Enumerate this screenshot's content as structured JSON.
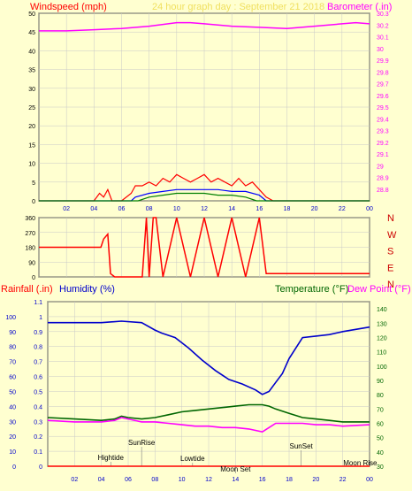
{
  "colors": {
    "background": "#ffffd0",
    "grid": "#c8c8c8",
    "axis": "#000000",
    "windspeed": "#ff0000",
    "wind_gust": "#ff0000",
    "wind_avg": "#0000ff",
    "wind_low": "#008000",
    "barometer": "#ff00ff",
    "header": "#f0e060",
    "humidity": "#0000cc",
    "temperature": "#006600",
    "dewpoint": "#ff00ff",
    "rainfall": "#ff0000",
    "tick_blue": "#0000cc",
    "event_label": "#000000",
    "wind_letters": "#cc0000"
  },
  "header": {
    "left": "Windspeed (mph)",
    "center": "24 hour graph day :  September 21 2018",
    "right": "Barometer (.in)"
  },
  "direction_letters": [
    "N",
    "W",
    "S",
    "E",
    "N"
  ],
  "bottom_header": {
    "rainfall": "Rainfall (.in)",
    "humidity": "Humidity (%)",
    "temperature": "Temperature (°F)",
    "dewpoint": "Dew Point (°F)"
  },
  "x_tick_labels": [
    "02",
    "04",
    "06",
    "08",
    "10",
    "12",
    "14",
    "16",
    "18",
    "20",
    "22",
    "00"
  ],
  "events": [
    {
      "label": "Hightide",
      "hour": 4.7
    },
    {
      "label": "SunRise",
      "hour": 7.0
    },
    {
      "label": "Lowtide",
      "hour": 10.8
    },
    {
      "label": "Moon Set",
      "hour": 14.0
    },
    {
      "label": "SunSet",
      "hour": 18.9
    },
    {
      "label": "Moon Rise",
      "hour": 23.3
    }
  ],
  "chart_data": [
    {
      "type": "line",
      "title": "24 hour graph day :  September 21 2018",
      "xlabel": "",
      "ylabel": "Windspeed (mph)",
      "y2label": "Barometer (.in)",
      "xlim": [
        0,
        24
      ],
      "ylim": [
        0,
        50
      ],
      "y2lim": [
        28.7,
        30.3
      ],
      "y_ticks": [
        0,
        5,
        10,
        15,
        20,
        25,
        30,
        35,
        40,
        45,
        50
      ],
      "y2_ticks": [
        "28.8",
        "28.9",
        "29",
        "29.1",
        "29.2",
        "29.3",
        "29.4",
        "29.5",
        "29.6",
        "29.7",
        "29.8",
        "29.9",
        "30",
        "30.1",
        "30.2",
        "30.3"
      ],
      "grid": true,
      "series": [
        {
          "name": "Barometer (.in)",
          "axis": "right",
          "x": [
            0,
            2,
            4,
            6,
            8,
            10,
            11,
            12,
            14,
            16,
            18,
            20,
            22,
            23,
            24
          ],
          "y": [
            30.15,
            30.15,
            30.16,
            30.17,
            30.19,
            30.22,
            30.22,
            30.21,
            30.19,
            30.18,
            30.17,
            30.19,
            30.21,
            30.22,
            30.21
          ]
        },
        {
          "name": "Windspeed (mph)",
          "axis": "left",
          "x": [
            0,
            4.0,
            4.4,
            4.7,
            5.0,
            5.3,
            6.0,
            6.7,
            7.0,
            7.5,
            8.0,
            8.5,
            9.0,
            9.5,
            10.0,
            10.5,
            11.0,
            11.5,
            12.0,
            12.5,
            13.0,
            13.5,
            14.0,
            14.5,
            15.0,
            15.5,
            16.0,
            16.5,
            17.0,
            24
          ],
          "y": [
            0,
            0,
            2,
            1,
            3,
            0,
            0,
            2,
            4,
            4,
            5,
            4,
            6,
            5,
            7,
            6,
            5,
            6,
            7,
            5,
            6,
            5,
            4,
            6,
            4,
            5,
            3,
            1,
            0,
            0
          ]
        },
        {
          "name": "Wind average",
          "axis": "left",
          "x": [
            0,
            6.7,
            7.0,
            8.0,
            9.0,
            10.0,
            11.0,
            12.0,
            13.0,
            14.0,
            15.0,
            16.0,
            16.5,
            24
          ],
          "y": [
            0,
            0,
            1,
            2,
            2.5,
            3,
            3,
            3,
            3,
            2.5,
            2.5,
            1.5,
            0,
            0
          ]
        },
        {
          "name": "Wind low",
          "axis": "left",
          "x": [
            0,
            7.2,
            8.0,
            9.0,
            10.0,
            11.0,
            12.0,
            13.0,
            14.0,
            15.0,
            15.8,
            24
          ],
          "y": [
            0,
            0,
            1,
            1.5,
            2,
            2,
            2,
            1.5,
            1.5,
            1,
            0,
            0
          ]
        }
      ]
    },
    {
      "type": "line",
      "title": "",
      "ylabel": "Wind direction",
      "xlim": [
        0,
        24
      ],
      "ylim": [
        0,
        360
      ],
      "y_ticks": [
        0,
        90,
        180,
        270,
        360
      ],
      "y_ticks_right": [
        "N",
        "W",
        "S",
        "E",
        "N"
      ],
      "grid": true,
      "series": [
        {
          "name": "Wind direction",
          "x": [
            0,
            4.0,
            4.5,
            4.7,
            5.0,
            5.2,
            5.5,
            6.0,
            7.0,
            7.5,
            7.8,
            8.0,
            8.3,
            8.5,
            9.0,
            10.0,
            11.0,
            12.0,
            13.0,
            14.0,
            15.0,
            16.0,
            16.5,
            17.0,
            24
          ],
          "y": [
            180,
            180,
            180,
            230,
            260,
            20,
            0,
            0,
            0,
            0,
            360,
            0,
            360,
            360,
            0,
            360,
            0,
            360,
            0,
            360,
            0,
            360,
            20,
            20,
            20
          ]
        }
      ]
    },
    {
      "type": "line",
      "title": "",
      "xlim": [
        0,
        24
      ],
      "ylim": [
        0,
        1.0
      ],
      "y_ticks": [
        0,
        0.1,
        0.2,
        0.3,
        0.4,
        0.5,
        0.6,
        0.7,
        0.8,
        0.9,
        1.0,
        1.1
      ],
      "y2lim": [
        30,
        145
      ],
      "y2_ticks": [
        30,
        40,
        50,
        60,
        70,
        80,
        90,
        100,
        110,
        120,
        130,
        140
      ],
      "grid": true,
      "series": [
        {
          "name": "Humidity (%)",
          "axis": "left_humidity_percent",
          "x": [
            0,
            2,
            4,
            5.5,
            7.0,
            8.0,
            8.5,
            9.5,
            10.5,
            11.5,
            12.5,
            13.5,
            14.5,
            15.5,
            16.0,
            16.5,
            17.0,
            17.5,
            18.0,
            19.0,
            20.0,
            21.0,
            22.0,
            24.0
          ],
          "y": [
            96,
            96,
            96,
            97,
            96,
            91,
            89,
            86,
            79,
            71,
            64,
            58,
            55,
            51,
            48,
            50,
            56,
            62,
            72,
            86,
            87,
            88,
            90,
            93
          ]
        },
        {
          "name": "Temperature (°F)",
          "axis": "right",
          "x": [
            0,
            2,
            4,
            5.0,
            5.5,
            6.0,
            7.0,
            8.0,
            9.0,
            10.0,
            11.0,
            12.0,
            13.0,
            14.0,
            15.0,
            16.0,
            16.5,
            17.0,
            18.0,
            19.0,
            20.0,
            21.0,
            22.0,
            24.0
          ],
          "y": [
            64,
            63,
            62,
            63,
            65,
            64,
            63,
            64,
            66,
            68,
            69,
            70,
            71,
            72,
            73,
            73,
            72,
            70,
            67,
            64,
            63,
            62,
            61,
            61
          ]
        },
        {
          "name": "Dew Point (°F)",
          "axis": "right",
          "x": [
            0,
            2,
            4,
            5.0,
            5.5,
            6.0,
            7.0,
            8.0,
            9.0,
            10.0,
            11.0,
            12.0,
            13.0,
            14.0,
            15.0,
            16.0,
            16.5,
            17.0,
            18.0,
            19.0,
            20.0,
            21.0,
            22.0,
            24.0
          ],
          "y": [
            62,
            61,
            61,
            62,
            64,
            63,
            61,
            61,
            60,
            59,
            58,
            58,
            57,
            57,
            56,
            54,
            57,
            60,
            60,
            60,
            59,
            59,
            58,
            59
          ]
        },
        {
          "name": "Rainfall (.in)",
          "axis": "left",
          "x": [
            0,
            24
          ],
          "y": [
            0,
            0
          ]
        }
      ]
    }
  ]
}
